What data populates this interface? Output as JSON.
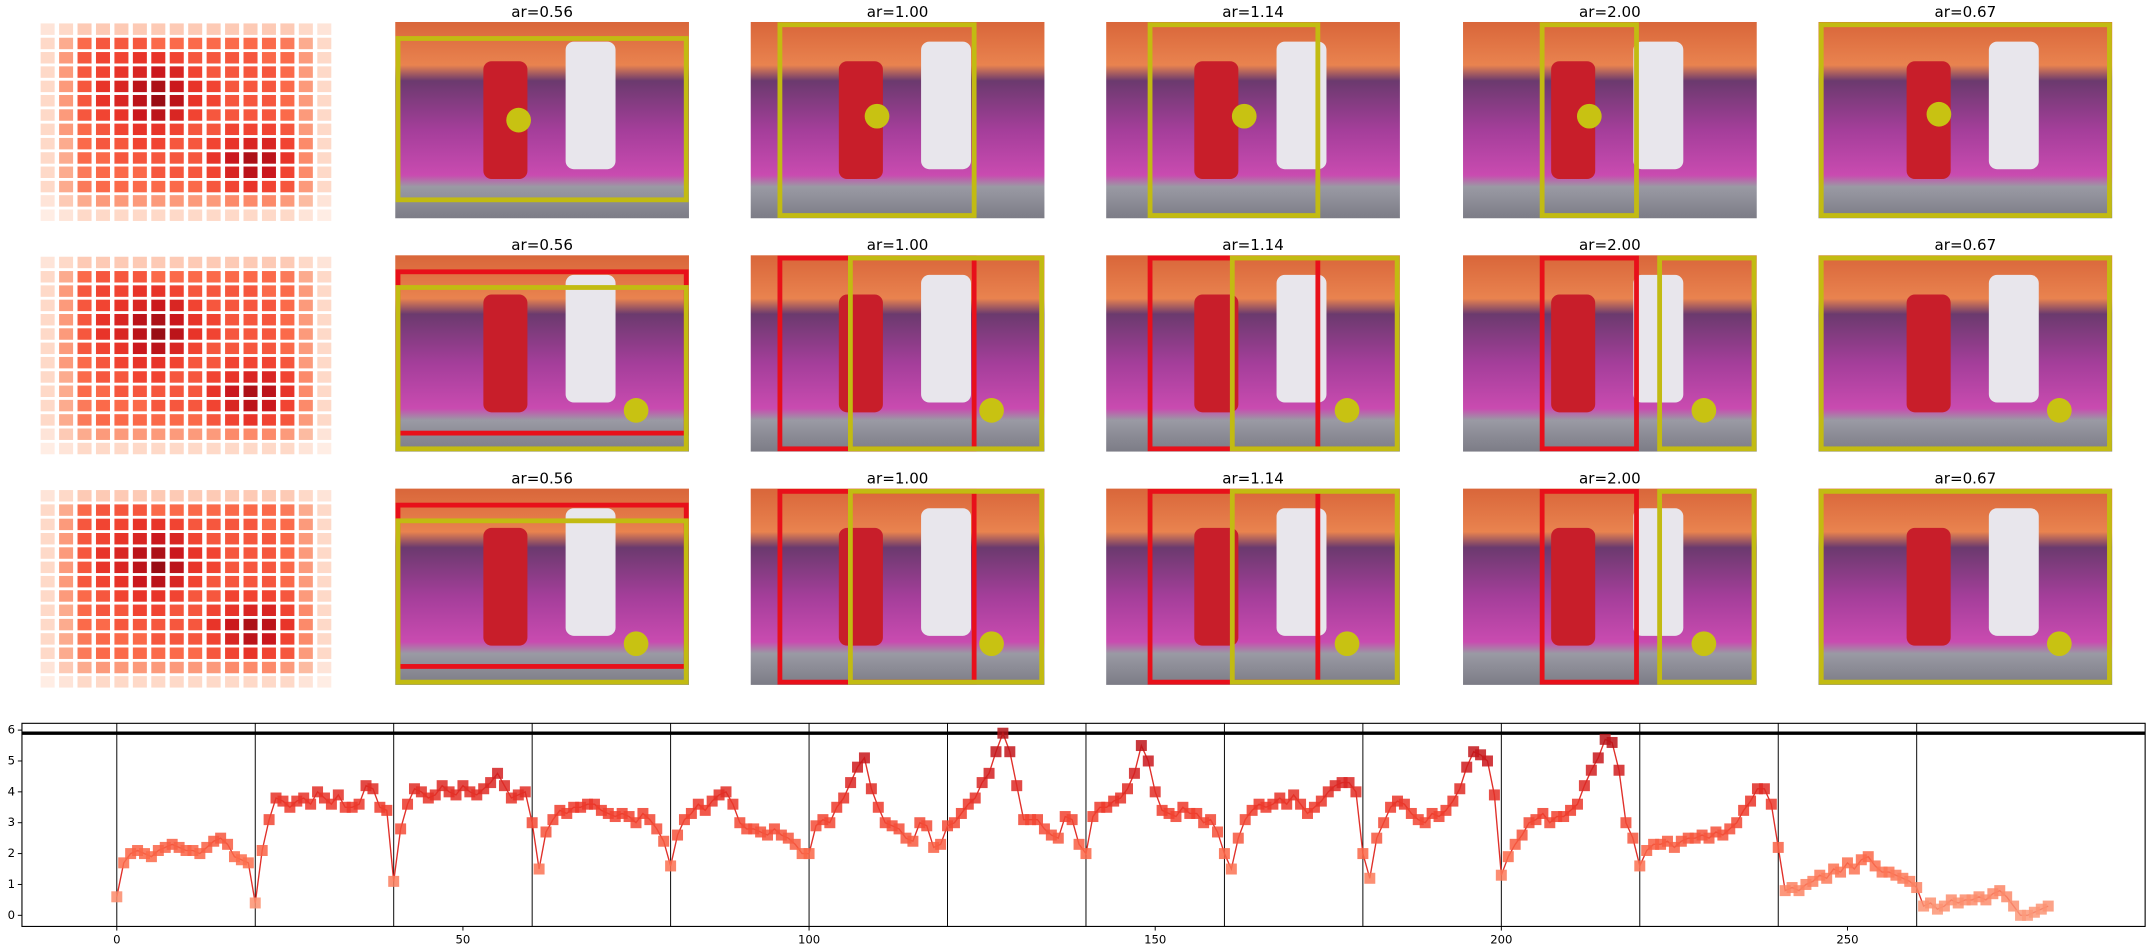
{
  "chart_data": [
    {
      "type": "heatmap",
      "cmap": "Reds",
      "z": [
        [
          0.1,
          0.15,
          0.2,
          0.2,
          0.2,
          0.2,
          0.2,
          0.2,
          0.2,
          0.2,
          0.2,
          0.2,
          0.2,
          0.2,
          0.15,
          0.1
        ],
        [
          0.15,
          0.3,
          0.5,
          0.55,
          0.55,
          0.55,
          0.5,
          0.5,
          0.5,
          0.5,
          0.5,
          0.5,
          0.5,
          0.45,
          0.3,
          0.15
        ],
        [
          0.15,
          0.35,
          0.55,
          0.6,
          0.6,
          0.65,
          0.65,
          0.6,
          0.55,
          0.55,
          0.55,
          0.55,
          0.5,
          0.5,
          0.35,
          0.15
        ],
        [
          0.15,
          0.35,
          0.55,
          0.6,
          0.65,
          0.7,
          0.75,
          0.7,
          0.6,
          0.55,
          0.55,
          0.55,
          0.55,
          0.5,
          0.35,
          0.15
        ],
        [
          0.15,
          0.35,
          0.55,
          0.65,
          0.7,
          0.8,
          0.85,
          0.75,
          0.65,
          0.6,
          0.55,
          0.55,
          0.55,
          0.5,
          0.35,
          0.15
        ],
        [
          0.15,
          0.35,
          0.55,
          0.65,
          0.7,
          0.8,
          0.9,
          0.8,
          0.65,
          0.6,
          0.55,
          0.55,
          0.55,
          0.5,
          0.35,
          0.15
        ],
        [
          0.15,
          0.35,
          0.55,
          0.6,
          0.65,
          0.75,
          0.8,
          0.7,
          0.6,
          0.55,
          0.55,
          0.55,
          0.55,
          0.5,
          0.35,
          0.15
        ],
        [
          0.15,
          0.35,
          0.5,
          0.55,
          0.6,
          0.65,
          0.65,
          0.6,
          0.55,
          0.55,
          0.6,
          0.6,
          0.6,
          0.55,
          0.35,
          0.15
        ],
        [
          0.15,
          0.3,
          0.5,
          0.55,
          0.55,
          0.6,
          0.6,
          0.55,
          0.55,
          0.6,
          0.65,
          0.7,
          0.7,
          0.6,
          0.4,
          0.15
        ],
        [
          0.15,
          0.3,
          0.5,
          0.5,
          0.55,
          0.55,
          0.55,
          0.55,
          0.55,
          0.65,
          0.75,
          0.85,
          0.8,
          0.65,
          0.4,
          0.15
        ],
        [
          0.15,
          0.3,
          0.45,
          0.5,
          0.5,
          0.5,
          0.55,
          0.55,
          0.55,
          0.6,
          0.7,
          0.8,
          0.75,
          0.6,
          0.4,
          0.15
        ],
        [
          0.15,
          0.3,
          0.45,
          0.5,
          0.5,
          0.5,
          0.5,
          0.5,
          0.5,
          0.55,
          0.6,
          0.65,
          0.6,
          0.55,
          0.35,
          0.15
        ],
        [
          0.1,
          0.2,
          0.3,
          0.35,
          0.35,
          0.35,
          0.35,
          0.35,
          0.35,
          0.35,
          0.4,
          0.4,
          0.4,
          0.35,
          0.25,
          0.1
        ],
        [
          0.05,
          0.1,
          0.15,
          0.15,
          0.15,
          0.15,
          0.15,
          0.15,
          0.15,
          0.15,
          0.15,
          0.15,
          0.15,
          0.15,
          0.1,
          0.05
        ]
      ]
    },
    {
      "type": "line",
      "color": "#e0302a",
      "cmap": "Reds",
      "x": [
        0,
        1,
        2,
        3,
        4,
        5,
        6,
        7,
        8,
        9,
        10,
        11,
        12,
        13,
        14,
        15,
        16,
        17,
        18,
        19,
        20,
        21,
        22,
        23,
        24,
        25,
        26,
        27,
        28,
        29,
        30,
        31,
        32,
        33,
        34,
        35,
        36,
        37,
        38,
        39,
        40,
        41,
        42,
        43,
        44,
        45,
        46,
        47,
        48,
        49,
        50,
        51,
        52,
        53,
        54,
        55,
        56,
        57,
        58,
        59,
        60,
        61,
        62,
        63,
        64,
        65,
        66,
        67,
        68,
        69,
        70,
        71,
        72,
        73,
        74,
        75,
        76,
        77,
        78,
        79,
        80,
        81,
        82,
        83,
        84,
        85,
        86,
        87,
        88,
        89,
        90,
        91,
        92,
        93,
        94,
        95,
        96,
        97,
        98,
        99,
        100,
        101,
        102,
        103,
        104,
        105,
        106,
        107,
        108,
        109,
        110,
        111,
        112,
        113,
        114,
        115,
        116,
        117,
        118,
        119,
        120,
        121,
        122,
        123,
        124,
        125,
        126,
        127,
        128,
        129,
        130,
        131,
        132,
        133,
        134,
        135,
        136,
        137,
        138,
        139,
        140,
        141,
        142,
        143,
        144,
        145,
        146,
        147,
        148,
        149,
        150,
        151,
        152,
        153,
        154,
        155,
        156,
        157,
        158,
        159,
        160,
        161,
        162,
        163,
        164,
        165,
        166,
        167,
        168,
        169,
        170,
        171,
        172,
        173,
        174,
        175,
        176,
        177,
        178,
        179,
        180,
        181,
        182,
        183,
        184,
        185,
        186,
        187,
        188,
        189,
        190,
        191,
        192,
        193,
        194,
        195,
        196,
        197,
        198,
        199,
        200,
        201,
        202,
        203,
        204,
        205,
        206,
        207,
        208,
        209,
        210,
        211,
        212,
        213,
        214,
        215,
        216,
        217,
        218,
        219,
        220,
        221,
        222,
        223,
        224,
        225,
        226,
        227,
        228,
        229,
        230,
        231,
        232,
        233,
        234,
        235,
        236,
        237,
        238,
        239,
        240,
        241,
        242,
        243,
        244,
        245,
        246,
        247,
        248,
        249,
        250,
        251,
        252,
        253,
        254,
        255,
        256,
        257,
        258,
        259,
        260,
        261,
        262,
        263,
        264,
        265,
        266,
        267,
        268,
        269,
        270,
        271,
        272,
        273,
        274,
        275,
        276,
        277,
        278,
        279
      ],
      "values": [
        0.6,
        1.7,
        2.0,
        2.1,
        2.0,
        1.9,
        2.1,
        2.2,
        2.3,
        2.2,
        2.1,
        2.1,
        2.0,
        2.2,
        2.4,
        2.5,
        2.3,
        1.9,
        1.8,
        1.7,
        0.4,
        2.1,
        3.1,
        3.8,
        3.7,
        3.5,
        3.7,
        3.8,
        3.6,
        4.0,
        3.8,
        3.6,
        3.9,
        3.5,
        3.5,
        3.6,
        4.2,
        4.1,
        3.5,
        3.4,
        1.1,
        2.8,
        3.6,
        4.1,
        4.0,
        3.8,
        3.9,
        4.2,
        4.0,
        3.9,
        4.2,
        4.0,
        3.9,
        4.1,
        4.3,
        4.6,
        4.2,
        3.8,
        3.9,
        4.0,
        3.0,
        1.5,
        2.7,
        3.1,
        3.4,
        3.3,
        3.5,
        3.5,
        3.6,
        3.6,
        3.4,
        3.3,
        3.2,
        3.3,
        3.2,
        3.0,
        3.3,
        3.1,
        2.8,
        2.4,
        1.6,
        2.6,
        3.1,
        3.3,
        3.6,
        3.4,
        3.7,
        3.9,
        4.0,
        3.6,
        3.0,
        2.8,
        2.8,
        2.7,
        2.6,
        2.8,
        2.6,
        2.5,
        2.3,
        2.0,
        2.0,
        2.9,
        3.1,
        3.0,
        3.5,
        3.8,
        4.3,
        4.8,
        5.1,
        4.1,
        3.5,
        3.0,
        2.9,
        2.8,
        2.5,
        2.4,
        3.0,
        2.9,
        2.2,
        2.3,
        2.9,
        3.0,
        3.3,
        3.6,
        3.8,
        4.3,
        4.6,
        5.3,
        5.9,
        5.3,
        4.2,
        3.1,
        3.1,
        3.1,
        2.8,
        2.6,
        2.5,
        3.2,
        3.1,
        2.3,
        2.0,
        3.2,
        3.5,
        3.5,
        3.7,
        3.8,
        4.1,
        4.6,
        5.5,
        5.0,
        4.0,
        3.4,
        3.3,
        3.2,
        3.5,
        3.3,
        3.3,
        3.0,
        3.1,
        2.7,
        2.0,
        1.5,
        2.5,
        3.1,
        3.4,
        3.6,
        3.5,
        3.6,
        3.8,
        3.6,
        3.9,
        3.6,
        3.3,
        3.5,
        3.7,
        4.0,
        4.2,
        4.3,
        4.3,
        4.0,
        2.0,
        1.2,
        2.5,
        3.0,
        3.5,
        3.7,
        3.6,
        3.3,
        3.1,
        3.0,
        3.3,
        3.2,
        3.4,
        3.7,
        4.1,
        4.8,
        5.3,
        5.2,
        5.0,
        3.9,
        1.3,
        1.9,
        2.3,
        2.6,
        3.0,
        3.1,
        3.3,
        3.0,
        3.2,
        3.2,
        3.4,
        3.6,
        4.2,
        4.7,
        5.1,
        5.7,
        5.6,
        4.7,
        3.0,
        2.5,
        1.6,
        2.1,
        2.3,
        2.3,
        2.4,
        2.2,
        2.4,
        2.5,
        2.5,
        2.6,
        2.5,
        2.7,
        2.6,
        2.8,
        3.0,
        3.4,
        3.7,
        4.1,
        4.1,
        3.6,
        2.2,
        0.8,
        0.9,
        0.8,
        1.0,
        1.1,
        1.3,
        1.2,
        1.5,
        1.4,
        1.7,
        1.5,
        1.8,
        1.9,
        1.6,
        1.4,
        1.4,
        1.3,
        1.2,
        1.1,
        0.9,
        0.3,
        0.4,
        0.2,
        0.3,
        0.5,
        0.4,
        0.5,
        0.5,
        0.6,
        0.5,
        0.7,
        0.8,
        0.6,
        0.3,
        0.0,
        0.0,
        0.1,
        0.2,
        0.3
      ],
      "xlim": [
        -13.7,
        293
      ],
      "ylim": [
        -0.36,
        6.22
      ],
      "xticks": [
        0,
        50,
        100,
        150,
        200,
        250
      ],
      "yticks": [
        0,
        1,
        2,
        3,
        4,
        5,
        6
      ],
      "vlines": [
        0,
        20,
        40,
        60,
        80,
        100,
        120,
        140,
        160,
        180,
        200,
        220,
        240,
        260
      ],
      "hline": 5.9
    }
  ],
  "panels": {
    "titles": [
      [
        "ar=0.56",
        "ar=1.00",
        "ar=1.14",
        "ar=2.00",
        "ar=0.67"
      ],
      [
        "ar=0.56",
        "ar=1.00",
        "ar=1.14",
        "ar=2.00",
        "ar=0.67"
      ],
      [
        "ar=0.56",
        "ar=1.00",
        "ar=1.14",
        "ar=2.00",
        "ar=0.67"
      ]
    ]
  }
}
